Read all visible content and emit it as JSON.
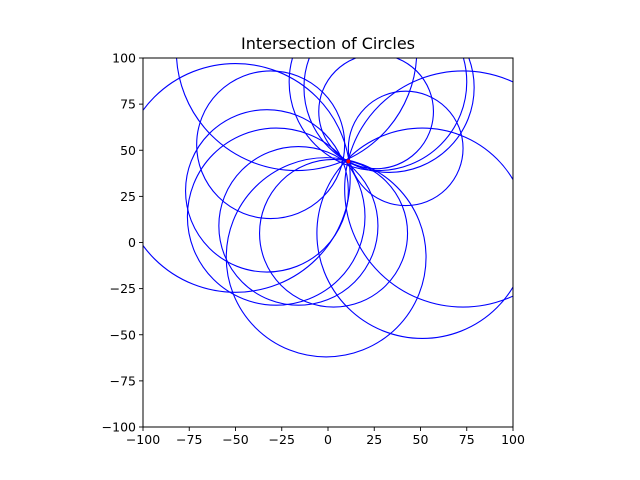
{
  "chart_data": {
    "type": "scatter",
    "title": "Intersection of Circles",
    "xlabel": "",
    "ylabel": "",
    "xlim": [
      -100,
      100
    ],
    "ylim": [
      -100,
      100
    ],
    "xticks": [
      -100,
      -75,
      -50,
      -25,
      0,
      25,
      50,
      75,
      100
    ],
    "yticks": [
      -100,
      -75,
      -50,
      -25,
      0,
      25,
      50,
      75,
      100
    ],
    "grid": false,
    "circle_color": "#0000ff",
    "intersection_point": {
      "x": 11,
      "y": 44,
      "color": "#ff0000"
    },
    "circles": [
      {
        "cx": 73,
        "cy": 29,
        "r": 64
      },
      {
        "cx": 42,
        "cy": 51,
        "r": 31
      },
      {
        "cx": 33,
        "cy": 84,
        "r": 46
      },
      {
        "cx": 27,
        "cy": 87,
        "r": 48
      },
      {
        "cx": 26,
        "cy": 71,
        "r": 31
      },
      {
        "cx": -17,
        "cy": 104,
        "r": 65
      },
      {
        "cx": -31,
        "cy": 53,
        "r": 40
      },
      {
        "cx": -50,
        "cy": 35,
        "r": 62
      },
      {
        "cx": -33,
        "cy": 28,
        "r": 44
      },
      {
        "cx": -28,
        "cy": 14,
        "r": 48
      },
      {
        "cx": -16,
        "cy": 9,
        "r": 43
      },
      {
        "cx": 3,
        "cy": 5,
        "r": 40
      },
      {
        "cx": -1,
        "cy": -8,
        "r": 54
      },
      {
        "cx": 51,
        "cy": 5,
        "r": 57
      }
    ]
  }
}
